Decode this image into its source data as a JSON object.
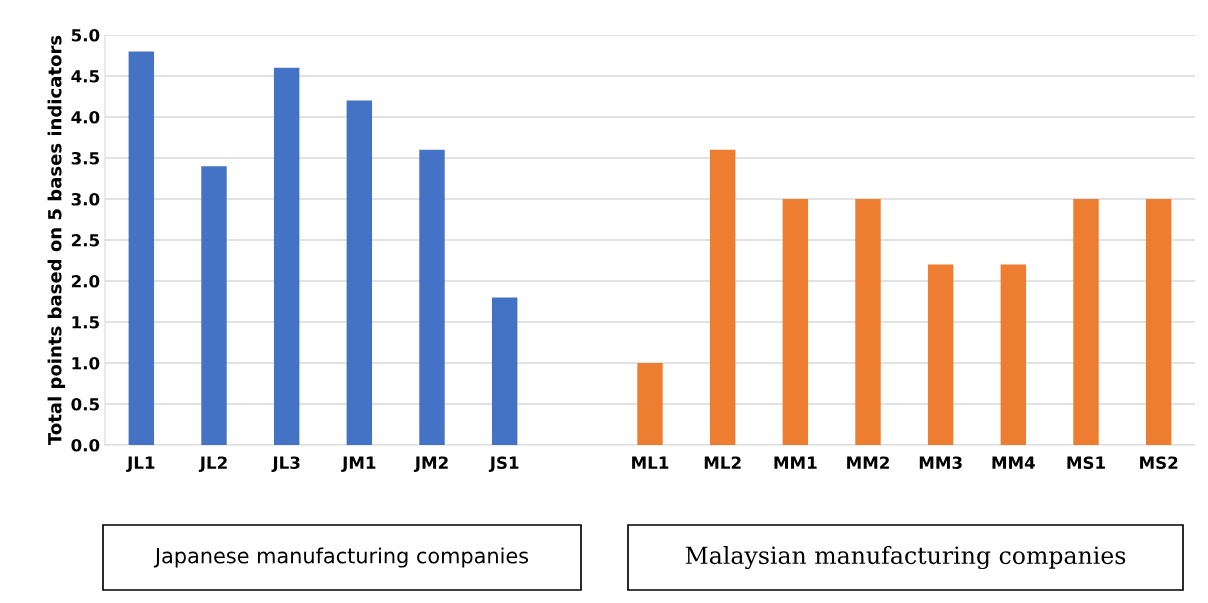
{
  "chart_data": {
    "type": "bar",
    "ylabel": "Total points based on 5 bases indicators",
    "categories": [
      "JL1",
      "JL2",
      "JL3",
      "JM1",
      "JM2",
      "JS1",
      null,
      "ML1",
      "ML2",
      "MM1",
      "MM2",
      "MM3",
      "MM4",
      "MS1",
      "MS2"
    ],
    "values": [
      4.8,
      3.4,
      4.6,
      4.2,
      3.6,
      1.8,
      null,
      1.0,
      3.6,
      3.0,
      3.0,
      2.2,
      2.2,
      3.0,
      3.0
    ],
    "colors": [
      "#4472c4",
      "#4472c4",
      "#4472c4",
      "#4472c4",
      "#4472c4",
      "#4472c4",
      "#4472c4",
      "#ed7d31",
      "#ed7d31",
      "#ed7d31",
      "#ed7d31",
      "#ed7d31",
      "#ed7d31",
      "#ed7d31",
      "#ed7d31"
    ],
    "ylim": [
      0,
      5
    ],
    "yticks": [
      {
        "value": 0,
        "label": "0.0"
      },
      {
        "value": 0.5,
        "label": "0.5"
      },
      {
        "value": 1,
        "label": "1.0"
      },
      {
        "value": 1.5,
        "label": "1.5"
      },
      {
        "value": 2,
        "label": "2.0"
      },
      {
        "value": 2.5,
        "label": "2.5"
      },
      {
        "value": 3,
        "label": "3.0"
      },
      {
        "value": 3.5,
        "label": "3.5"
      },
      {
        "value": 4,
        "label": "4.0"
      },
      {
        "value": 4.5,
        "label": "4.5"
      },
      {
        "value": 5,
        "label": "5.0"
      }
    ],
    "grid": "y",
    "legend": false,
    "annotations": [
      "Japanese manufacturing companies",
      "Malaysian manufacturing companies"
    ]
  }
}
